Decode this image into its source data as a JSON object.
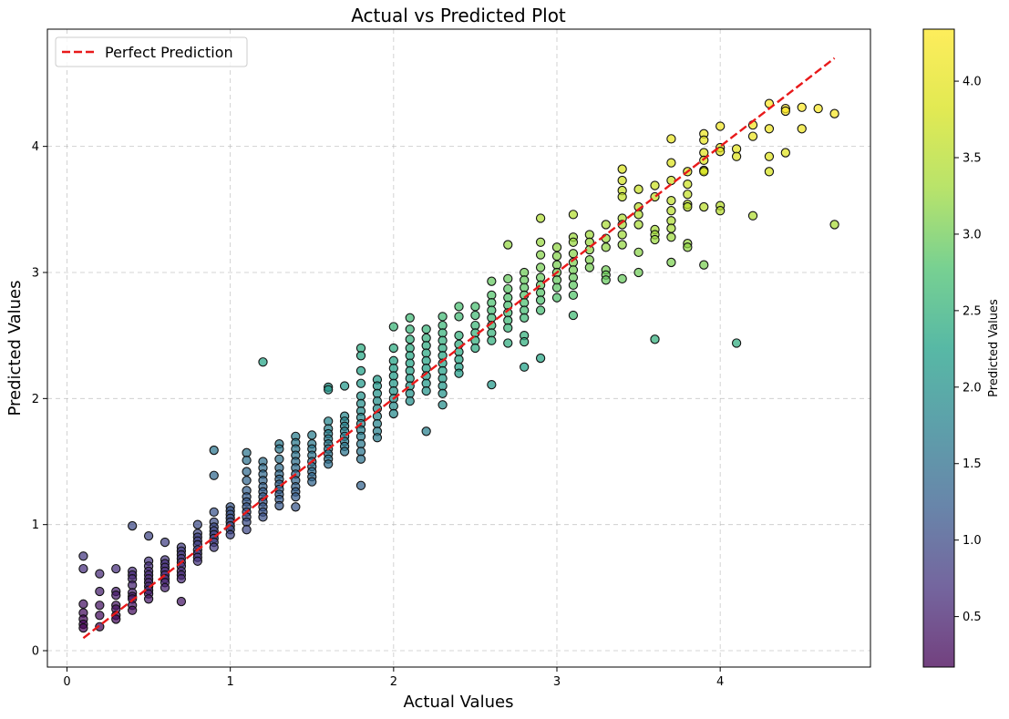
{
  "chart_data": {
    "type": "scatter",
    "title": "Actual vs Predicted Plot",
    "xlabel": "Actual Values",
    "ylabel": "Predicted Values",
    "xlim": [
      -0.12,
      4.92
    ],
    "ylim": [
      -0.13,
      4.93
    ],
    "x_ticks": [
      0,
      1,
      2,
      3,
      4
    ],
    "y_ticks": [
      0,
      1,
      2,
      3,
      4
    ],
    "grid": true,
    "legend_position": "top-left",
    "reference_line": {
      "name": "Perfect Prediction",
      "x": [
        0.1,
        4.7
      ],
      "y": [
        0.1,
        4.7
      ],
      "color": "#e8191a",
      "style": "dashed"
    },
    "colorbar": {
      "label": "Predicted Values",
      "colormap": "viridis",
      "range": [
        0.17,
        4.34
      ],
      "ticks": [
        0.5,
        1.0,
        1.5,
        2.0,
        2.5,
        3.0,
        3.5,
        4.0
      ],
      "tick_labels": [
        "0.5",
        "1.0",
        "1.5",
        "2.0",
        "2.5",
        "3.0",
        "3.5",
        "4.0"
      ]
    },
    "points": [
      [
        0.1,
        0.75
      ],
      [
        0.1,
        0.65
      ],
      [
        0.1,
        0.37
      ],
      [
        0.1,
        0.3
      ],
      [
        0.1,
        0.25
      ],
      [
        0.1,
        0.21
      ],
      [
        0.1,
        0.18
      ],
      [
        0.2,
        0.61
      ],
      [
        0.2,
        0.47
      ],
      [
        0.2,
        0.36
      ],
      [
        0.2,
        0.28
      ],
      [
        0.2,
        0.19
      ],
      [
        0.3,
        0.65
      ],
      [
        0.3,
        0.47
      ],
      [
        0.3,
        0.44
      ],
      [
        0.3,
        0.36
      ],
      [
        0.3,
        0.33
      ],
      [
        0.3,
        0.28
      ],
      [
        0.3,
        0.25
      ],
      [
        0.4,
        0.99
      ],
      [
        0.4,
        0.63
      ],
      [
        0.4,
        0.6
      ],
      [
        0.4,
        0.57
      ],
      [
        0.4,
        0.52
      ],
      [
        0.4,
        0.46
      ],
      [
        0.4,
        0.43
      ],
      [
        0.4,
        0.41
      ],
      [
        0.4,
        0.36
      ],
      [
        0.4,
        0.32
      ],
      [
        0.5,
        0.91
      ],
      [
        0.5,
        0.71
      ],
      [
        0.5,
        0.67
      ],
      [
        0.5,
        0.63
      ],
      [
        0.5,
        0.6
      ],
      [
        0.5,
        0.57
      ],
      [
        0.5,
        0.54
      ],
      [
        0.5,
        0.51
      ],
      [
        0.5,
        0.48
      ],
      [
        0.5,
        0.45
      ],
      [
        0.5,
        0.41
      ],
      [
        0.6,
        0.86
      ],
      [
        0.6,
        0.72
      ],
      [
        0.6,
        0.69
      ],
      [
        0.6,
        0.66
      ],
      [
        0.6,
        0.63
      ],
      [
        0.6,
        0.6
      ],
      [
        0.6,
        0.57
      ],
      [
        0.6,
        0.54
      ],
      [
        0.6,
        0.5
      ],
      [
        0.7,
        0.82
      ],
      [
        0.7,
        0.79
      ],
      [
        0.7,
        0.76
      ],
      [
        0.7,
        0.73
      ],
      [
        0.7,
        0.7
      ],
      [
        0.7,
        0.67
      ],
      [
        0.7,
        0.63
      ],
      [
        0.7,
        0.6
      ],
      [
        0.7,
        0.57
      ],
      [
        0.7,
        0.39
      ],
      [
        0.8,
        1.0
      ],
      [
        0.8,
        0.93
      ],
      [
        0.8,
        0.9
      ],
      [
        0.8,
        0.87
      ],
      [
        0.8,
        0.84
      ],
      [
        0.8,
        0.8
      ],
      [
        0.8,
        0.77
      ],
      [
        0.8,
        0.74
      ],
      [
        0.8,
        0.71
      ],
      [
        0.9,
        1.59
      ],
      [
        0.9,
        1.39
      ],
      [
        0.9,
        1.1
      ],
      [
        0.9,
        1.02
      ],
      [
        0.9,
        0.98
      ],
      [
        0.9,
        0.95
      ],
      [
        0.9,
        0.92
      ],
      [
        0.9,
        0.89
      ],
      [
        0.9,
        0.86
      ],
      [
        0.9,
        0.82
      ],
      [
        1.0,
        1.14
      ],
      [
        1.0,
        1.11
      ],
      [
        1.0,
        1.08
      ],
      [
        1.0,
        1.05
      ],
      [
        1.0,
        1.02
      ],
      [
        1.0,
        0.99
      ],
      [
        1.0,
        0.96
      ],
      [
        1.0,
        0.92
      ],
      [
        1.1,
        1.57
      ],
      [
        1.1,
        1.51
      ],
      [
        1.1,
        1.42
      ],
      [
        1.1,
        1.35
      ],
      [
        1.1,
        1.27
      ],
      [
        1.1,
        1.22
      ],
      [
        1.1,
        1.18
      ],
      [
        1.1,
        1.14
      ],
      [
        1.1,
        1.1
      ],
      [
        1.1,
        1.06
      ],
      [
        1.1,
        1.02
      ],
      [
        1.1,
        0.96
      ],
      [
        1.2,
        2.29
      ],
      [
        1.2,
        1.5
      ],
      [
        1.2,
        1.45
      ],
      [
        1.2,
        1.4
      ],
      [
        1.2,
        1.35
      ],
      [
        1.2,
        1.3
      ],
      [
        1.2,
        1.26
      ],
      [
        1.2,
        1.22
      ],
      [
        1.2,
        1.18
      ],
      [
        1.2,
        1.14
      ],
      [
        1.2,
        1.1
      ],
      [
        1.2,
        1.06
      ],
      [
        1.3,
        1.64
      ],
      [
        1.3,
        1.6
      ],
      [
        1.3,
        1.52
      ],
      [
        1.3,
        1.45
      ],
      [
        1.3,
        1.4
      ],
      [
        1.3,
        1.36
      ],
      [
        1.3,
        1.32
      ],
      [
        1.3,
        1.28
      ],
      [
        1.3,
        1.24
      ],
      [
        1.3,
        1.2
      ],
      [
        1.3,
        1.15
      ],
      [
        1.4,
        1.7
      ],
      [
        1.4,
        1.65
      ],
      [
        1.4,
        1.6
      ],
      [
        1.4,
        1.55
      ],
      [
        1.4,
        1.5
      ],
      [
        1.4,
        1.45
      ],
      [
        1.4,
        1.4
      ],
      [
        1.4,
        1.35
      ],
      [
        1.4,
        1.3
      ],
      [
        1.4,
        1.26
      ],
      [
        1.4,
        1.22
      ],
      [
        1.4,
        1.14
      ],
      [
        1.5,
        1.71
      ],
      [
        1.5,
        1.64
      ],
      [
        1.5,
        1.6
      ],
      [
        1.5,
        1.55
      ],
      [
        1.5,
        1.5
      ],
      [
        1.5,
        1.46
      ],
      [
        1.5,
        1.42
      ],
      [
        1.5,
        1.38
      ],
      [
        1.5,
        1.34
      ],
      [
        1.6,
        2.09
      ],
      [
        1.6,
        2.07
      ],
      [
        1.6,
        1.82
      ],
      [
        1.6,
        1.76
      ],
      [
        1.6,
        1.72
      ],
      [
        1.6,
        1.68
      ],
      [
        1.6,
        1.64
      ],
      [
        1.6,
        1.6
      ],
      [
        1.6,
        1.56
      ],
      [
        1.6,
        1.52
      ],
      [
        1.6,
        1.48
      ],
      [
        1.7,
        2.1
      ],
      [
        1.7,
        1.86
      ],
      [
        1.7,
        1.82
      ],
      [
        1.7,
        1.78
      ],
      [
        1.7,
        1.74
      ],
      [
        1.7,
        1.7
      ],
      [
        1.7,
        1.66
      ],
      [
        1.7,
        1.62
      ],
      [
        1.7,
        1.58
      ],
      [
        1.8,
        2.4
      ],
      [
        1.8,
        2.34
      ],
      [
        1.8,
        2.22
      ],
      [
        1.8,
        2.12
      ],
      [
        1.8,
        2.02
      ],
      [
        1.8,
        1.96
      ],
      [
        1.8,
        1.9
      ],
      [
        1.8,
        1.85
      ],
      [
        1.8,
        1.8
      ],
      [
        1.8,
        1.75
      ],
      [
        1.8,
        1.7
      ],
      [
        1.8,
        1.64
      ],
      [
        1.8,
        1.58
      ],
      [
        1.8,
        1.52
      ],
      [
        1.8,
        1.31
      ],
      [
        1.9,
        2.15
      ],
      [
        1.9,
        2.1
      ],
      [
        1.9,
        2.04
      ],
      [
        1.9,
        1.98
      ],
      [
        1.9,
        1.92
      ],
      [
        1.9,
        1.86
      ],
      [
        1.9,
        1.8
      ],
      [
        1.9,
        1.74
      ],
      [
        1.9,
        1.69
      ],
      [
        2.0,
        2.57
      ],
      [
        2.0,
        2.4
      ],
      [
        2.0,
        2.3
      ],
      [
        2.0,
        2.24
      ],
      [
        2.0,
        2.18
      ],
      [
        2.0,
        2.12
      ],
      [
        2.0,
        2.06
      ],
      [
        2.0,
        2.0
      ],
      [
        2.0,
        1.94
      ],
      [
        2.0,
        1.88
      ],
      [
        2.1,
        2.64
      ],
      [
        2.1,
        2.55
      ],
      [
        2.1,
        2.47
      ],
      [
        2.1,
        2.4
      ],
      [
        2.1,
        2.34
      ],
      [
        2.1,
        2.28
      ],
      [
        2.1,
        2.22
      ],
      [
        2.1,
        2.16
      ],
      [
        2.1,
        2.1
      ],
      [
        2.1,
        2.04
      ],
      [
        2.1,
        1.98
      ],
      [
        2.2,
        2.55
      ],
      [
        2.2,
        2.48
      ],
      [
        2.2,
        2.42
      ],
      [
        2.2,
        2.36
      ],
      [
        2.2,
        2.3
      ],
      [
        2.2,
        2.24
      ],
      [
        2.2,
        2.18
      ],
      [
        2.2,
        2.12
      ],
      [
        2.2,
        2.06
      ],
      [
        2.2,
        1.74
      ],
      [
        2.3,
        2.65
      ],
      [
        2.3,
        2.58
      ],
      [
        2.3,
        2.52
      ],
      [
        2.3,
        2.46
      ],
      [
        2.3,
        2.4
      ],
      [
        2.3,
        2.34
      ],
      [
        2.3,
        2.28
      ],
      [
        2.3,
        2.22
      ],
      [
        2.3,
        2.16
      ],
      [
        2.3,
        2.1
      ],
      [
        2.3,
        2.04
      ],
      [
        2.3,
        1.95
      ],
      [
        2.4,
        2.73
      ],
      [
        2.4,
        2.65
      ],
      [
        2.4,
        2.5
      ],
      [
        2.4,
        2.43
      ],
      [
        2.4,
        2.37
      ],
      [
        2.4,
        2.31
      ],
      [
        2.4,
        2.25
      ],
      [
        2.4,
        2.2
      ],
      [
        2.5,
        2.73
      ],
      [
        2.5,
        2.66
      ],
      [
        2.5,
        2.58
      ],
      [
        2.5,
        2.52
      ],
      [
        2.5,
        2.46
      ],
      [
        2.5,
        2.4
      ],
      [
        2.6,
        2.93
      ],
      [
        2.6,
        2.82
      ],
      [
        2.6,
        2.76
      ],
      [
        2.6,
        2.7
      ],
      [
        2.6,
        2.64
      ],
      [
        2.6,
        2.58
      ],
      [
        2.6,
        2.52
      ],
      [
        2.6,
        2.46
      ],
      [
        2.6,
        2.11
      ],
      [
        2.7,
        3.22
      ],
      [
        2.7,
        2.95
      ],
      [
        2.7,
        2.87
      ],
      [
        2.7,
        2.8
      ],
      [
        2.7,
        2.74
      ],
      [
        2.7,
        2.68
      ],
      [
        2.7,
        2.62
      ],
      [
        2.7,
        2.56
      ],
      [
        2.7,
        2.44
      ],
      [
        2.8,
        3.0
      ],
      [
        2.8,
        2.94
      ],
      [
        2.8,
        2.88
      ],
      [
        2.8,
        2.82
      ],
      [
        2.8,
        2.76
      ],
      [
        2.8,
        2.7
      ],
      [
        2.8,
        2.64
      ],
      [
        2.8,
        2.5
      ],
      [
        2.8,
        2.45
      ],
      [
        2.8,
        2.25
      ],
      [
        2.9,
        3.43
      ],
      [
        2.9,
        3.24
      ],
      [
        2.9,
        3.14
      ],
      [
        2.9,
        3.04
      ],
      [
        2.9,
        2.96
      ],
      [
        2.9,
        2.9
      ],
      [
        2.9,
        2.84
      ],
      [
        2.9,
        2.78
      ],
      [
        2.9,
        2.7
      ],
      [
        2.9,
        2.32
      ],
      [
        3.0,
        3.2
      ],
      [
        3.0,
        3.13
      ],
      [
        3.0,
        3.06
      ],
      [
        3.0,
        3.0
      ],
      [
        3.0,
        2.94
      ],
      [
        3.0,
        2.88
      ],
      [
        3.0,
        2.8
      ],
      [
        3.1,
        3.46
      ],
      [
        3.1,
        3.28
      ],
      [
        3.1,
        3.24
      ],
      [
        3.1,
        3.15
      ],
      [
        3.1,
        3.08
      ],
      [
        3.1,
        3.02
      ],
      [
        3.1,
        2.96
      ],
      [
        3.1,
        2.9
      ],
      [
        3.1,
        2.82
      ],
      [
        3.1,
        2.66
      ],
      [
        3.2,
        3.3
      ],
      [
        3.2,
        3.24
      ],
      [
        3.2,
        3.18
      ],
      [
        3.2,
        3.1
      ],
      [
        3.2,
        3.04
      ],
      [
        3.3,
        3.38
      ],
      [
        3.3,
        3.27
      ],
      [
        3.3,
        3.2
      ],
      [
        3.3,
        3.02
      ],
      [
        3.3,
        2.98
      ],
      [
        3.3,
        2.94
      ],
      [
        3.4,
        3.82
      ],
      [
        3.4,
        3.73
      ],
      [
        3.4,
        3.65
      ],
      [
        3.4,
        3.6
      ],
      [
        3.4,
        3.43
      ],
      [
        3.4,
        3.38
      ],
      [
        3.4,
        3.3
      ],
      [
        3.4,
        3.22
      ],
      [
        3.4,
        2.95
      ],
      [
        3.5,
        3.66
      ],
      [
        3.5,
        3.52
      ],
      [
        3.5,
        3.46
      ],
      [
        3.5,
        3.38
      ],
      [
        3.5,
        3.16
      ],
      [
        3.5,
        3.0
      ],
      [
        3.6,
        3.69
      ],
      [
        3.6,
        3.6
      ],
      [
        3.6,
        3.34
      ],
      [
        3.6,
        3.3
      ],
      [
        3.6,
        3.26
      ],
      [
        3.6,
        2.47
      ],
      [
        3.7,
        4.06
      ],
      [
        3.7,
        3.87
      ],
      [
        3.7,
        3.73
      ],
      [
        3.7,
        3.57
      ],
      [
        3.7,
        3.49
      ],
      [
        3.7,
        3.41
      ],
      [
        3.7,
        3.35
      ],
      [
        3.7,
        3.28
      ],
      [
        3.7,
        3.08
      ],
      [
        3.8,
        3.8
      ],
      [
        3.8,
        3.7
      ],
      [
        3.8,
        3.62
      ],
      [
        3.8,
        3.54
      ],
      [
        3.8,
        3.52
      ],
      [
        3.8,
        3.23
      ],
      [
        3.8,
        3.2
      ],
      [
        3.9,
        4.1
      ],
      [
        3.9,
        4.05
      ],
      [
        3.9,
        3.95
      ],
      [
        3.9,
        3.89
      ],
      [
        3.9,
        3.81
      ],
      [
        3.9,
        3.8
      ],
      [
        3.9,
        3.52
      ],
      [
        3.9,
        3.06
      ],
      [
        4.0,
        4.16
      ],
      [
        4.0,
        3.99
      ],
      [
        4.0,
        3.96
      ],
      [
        4.0,
        3.53
      ],
      [
        4.0,
        3.49
      ],
      [
        4.1,
        3.98
      ],
      [
        4.1,
        3.92
      ],
      [
        4.1,
        2.44
      ],
      [
        4.2,
        4.17
      ],
      [
        4.2,
        4.08
      ],
      [
        4.2,
        3.45
      ],
      [
        4.3,
        4.34
      ],
      [
        4.3,
        4.14
      ],
      [
        4.3,
        3.92
      ],
      [
        4.3,
        3.8
      ],
      [
        4.4,
        4.3
      ],
      [
        4.4,
        4.28
      ],
      [
        4.4,
        3.95
      ],
      [
        4.5,
        4.31
      ],
      [
        4.5,
        4.14
      ],
      [
        4.6,
        4.3
      ],
      [
        4.7,
        4.26
      ],
      [
        4.7,
        3.38
      ]
    ]
  }
}
